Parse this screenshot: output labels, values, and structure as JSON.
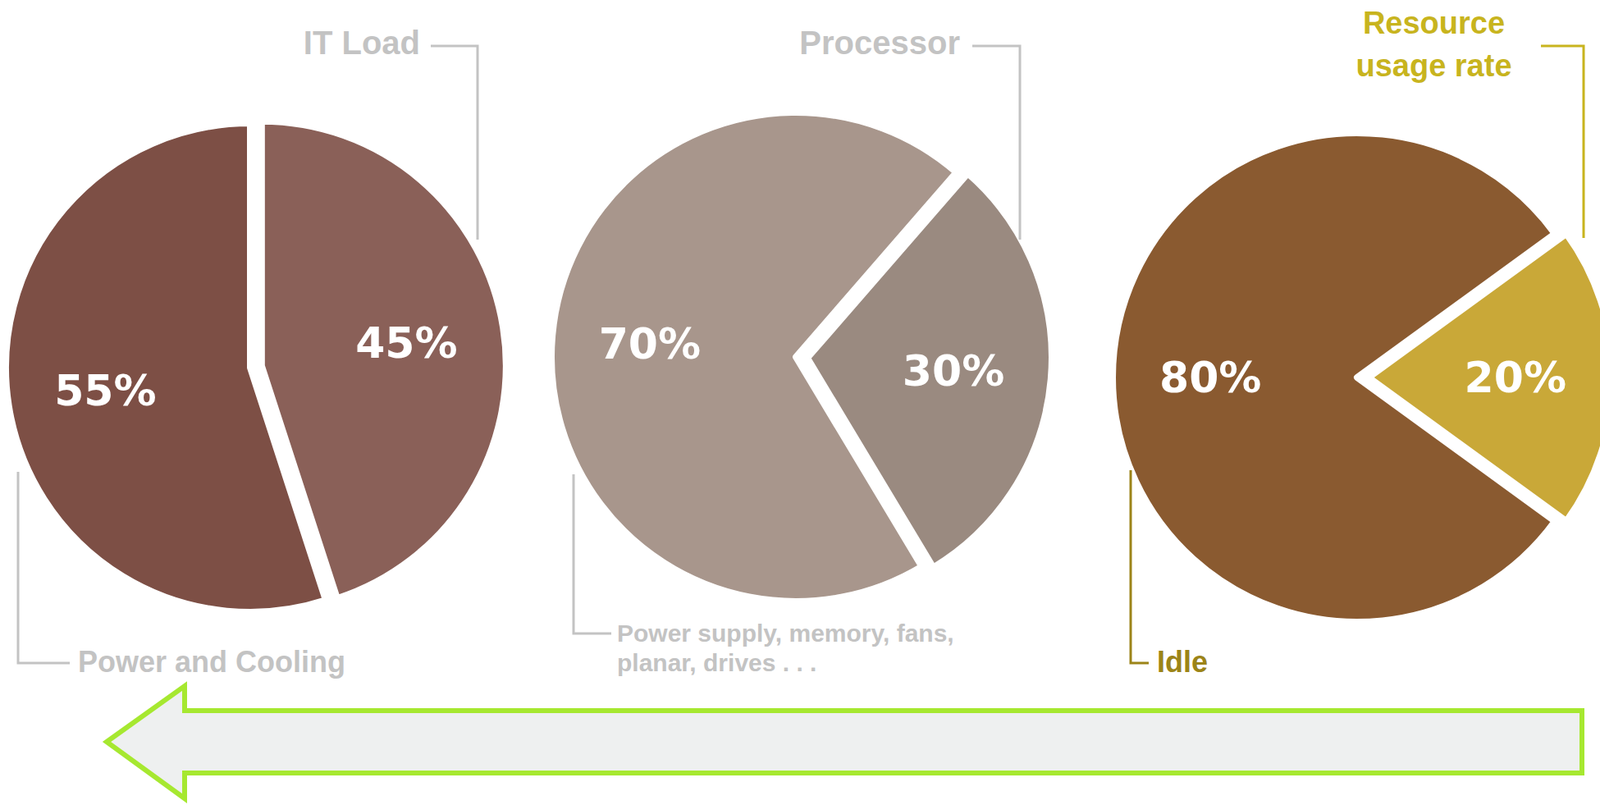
{
  "chart_data": [
    {
      "type": "pie",
      "categories": [
        "IT Load",
        "Power and Cooling"
      ],
      "values": [
        45,
        55
      ],
      "value_labels": [
        "45%",
        "55%"
      ],
      "colors": [
        "#8a6058",
        "#7d4f45"
      ],
      "data_labels": true
    },
    {
      "type": "pie",
      "categories": [
        "Processor",
        "Power supply, memory, fans, planar, drives . . ."
      ],
      "values": [
        30,
        70
      ],
      "value_labels": [
        "30%",
        "70%"
      ],
      "colors": [
        "#9a8a80",
        "#a8968c"
      ],
      "data_labels": true
    },
    {
      "type": "pie",
      "categories": [
        "Resource usage rate",
        "Idle"
      ],
      "values": [
        20,
        80
      ],
      "value_labels": [
        "20%",
        "80%"
      ],
      "colors": [
        "#c9a838",
        "#8a5a30"
      ],
      "data_labels": true
    }
  ]
}
